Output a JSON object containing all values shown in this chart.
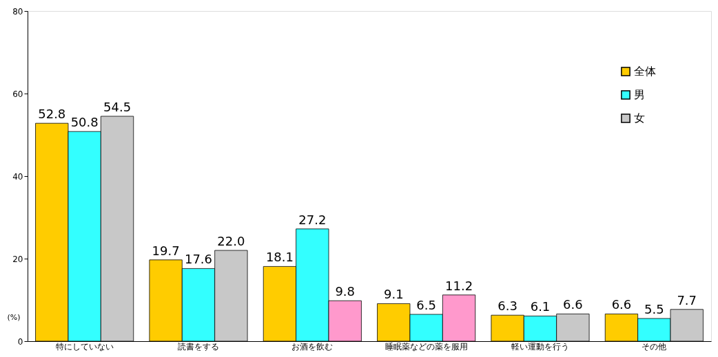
{
  "chart_data": {
    "type": "bar",
    "categories": [
      "特にしていない",
      "読書をする",
      "お酒を飲む",
      "睡眠薬などの薬を服用",
      "軽い運動を行う",
      "その他"
    ],
    "series": [
      {
        "name": "全体",
        "color": "#ffcc00",
        "values": [
          52.8,
          19.7,
          18.1,
          9.1,
          6.3,
          6.6
        ],
        "value_labels": [
          "52.8",
          "19.7",
          "18.1",
          "9.1",
          "6.3",
          "6.6"
        ]
      },
      {
        "name": "男",
        "color": "#33ffff",
        "values": [
          50.8,
          17.6,
          27.2,
          6.5,
          6.1,
          5.5
        ],
        "value_labels": [
          "50.8",
          "17.6",
          "27.2",
          "6.5",
          "6.1",
          "5.5"
        ]
      },
      {
        "name": "女",
        "color": "#c8c8c8",
        "colors": [
          "#c8c8c8",
          "#c8c8c8",
          "#ff99cc",
          "#ff99cc",
          "#c8c8c8",
          "#c8c8c8"
        ],
        "values": [
          54.5,
          22.0,
          9.8,
          11.2,
          6.6,
          7.7
        ],
        "value_labels": [
          "54.5",
          "22.0",
          "9.8",
          "11.2",
          "6.6",
          "7.7"
        ]
      }
    ],
    "ylabel": "(%)",
    "ylim": [
      0,
      80
    ],
    "yticks": [
      0,
      20,
      40,
      60,
      80
    ],
    "grid": false,
    "legend": "top right"
  }
}
